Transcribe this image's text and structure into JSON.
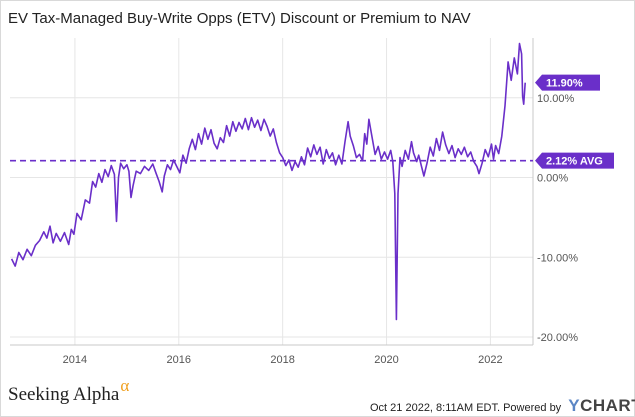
{
  "title": "EV Tax-Managed Buy-Write Opps (ETV) Discount or Premium to NAV",
  "colors": {
    "series": "#6a2fc9",
    "grid": "#e6e6e6",
    "axis": "#c8c8c8",
    "flag": "#6a2fc9"
  },
  "footer": {
    "brand_left": "Seeking Alpha",
    "brand_left_symbol": "α",
    "timestamp": "Oct 21 2022, 8:11AM EDT.",
    "powered_by": "Powered by",
    "brand_right_y": "Y",
    "brand_right_rest": "CHARTS"
  },
  "chart_data": {
    "type": "line",
    "title": "EV Tax-Managed Buy-Write Opps (ETV) Discount or Premium to NAV",
    "xlabel": "",
    "ylabel": "",
    "xlim": [
      2012.75,
      2022.82
    ],
    "ylim": [
      -21,
      17.5
    ],
    "x_ticks": [
      2014,
      2016,
      2018,
      2020,
      2022
    ],
    "x_tick_labels": [
      "2014",
      "2016",
      "2018",
      "2020",
      "2022"
    ],
    "y_ticks": [
      10,
      0,
      -10,
      -20
    ],
    "y_tick_labels": [
      "10.00%",
      "0.00%",
      "-10.00%",
      "-20.00%"
    ],
    "grid": true,
    "series": [
      {
        "name": "",
        "values": [
          [
            2012.78,
            -10.2
          ],
          [
            2012.85,
            -11.1
          ],
          [
            2012.92,
            -9.4
          ],
          [
            2013.0,
            -10.3
          ],
          [
            2013.08,
            -9.0
          ],
          [
            2013.16,
            -9.8
          ],
          [
            2013.24,
            -8.5
          ],
          [
            2013.32,
            -7.9
          ],
          [
            2013.4,
            -6.8
          ],
          [
            2013.46,
            -7.6
          ],
          [
            2013.52,
            -6.1
          ],
          [
            2013.58,
            -8.2
          ],
          [
            2013.64,
            -7.0
          ],
          [
            2013.72,
            -8.0
          ],
          [
            2013.8,
            -6.9
          ],
          [
            2013.88,
            -8.4
          ],
          [
            2013.93,
            -6.5
          ],
          [
            2013.98,
            -7.1
          ],
          [
            2014.04,
            -4.5
          ],
          [
            2014.12,
            -5.3
          ],
          [
            2014.2,
            -2.8
          ],
          [
            2014.28,
            -3.2
          ],
          [
            2014.34,
            -0.5
          ],
          [
            2014.4,
            -1.2
          ],
          [
            2014.46,
            0.5
          ],
          [
            2014.52,
            -0.6
          ],
          [
            2014.58,
            1.0
          ],
          [
            2014.64,
            0.1
          ],
          [
            2014.7,
            1.5
          ],
          [
            2014.76,
            0.4
          ],
          [
            2014.8,
            -5.5
          ],
          [
            2014.84,
            0.0
          ],
          [
            2014.88,
            1.8
          ],
          [
            2014.94,
            1.1
          ],
          [
            2015.0,
            1.6
          ],
          [
            2015.04,
            0.8
          ],
          [
            2015.08,
            -2.5
          ],
          [
            2015.12,
            -1.0
          ],
          [
            2015.18,
            0.8
          ],
          [
            2015.26,
            0.5
          ],
          [
            2015.34,
            1.4
          ],
          [
            2015.42,
            0.9
          ],
          [
            2015.5,
            1.7
          ],
          [
            2015.56,
            0.6
          ],
          [
            2015.62,
            -0.5
          ],
          [
            2015.68,
            -1.8
          ],
          [
            2015.72,
            0.2
          ],
          [
            2015.78,
            1.6
          ],
          [
            2015.84,
            1.0
          ],
          [
            2015.9,
            2.2
          ],
          [
            2015.96,
            1.4
          ],
          [
            2016.02,
            0.6
          ],
          [
            2016.08,
            2.8
          ],
          [
            2016.14,
            1.8
          ],
          [
            2016.2,
            3.6
          ],
          [
            2016.26,
            4.8
          ],
          [
            2016.32,
            3.5
          ],
          [
            2016.38,
            5.5
          ],
          [
            2016.44,
            4.2
          ],
          [
            2016.5,
            6.2
          ],
          [
            2016.56,
            4.8
          ],
          [
            2016.62,
            6.0
          ],
          [
            2016.68,
            4.3
          ],
          [
            2016.74,
            3.6
          ],
          [
            2016.8,
            5.0
          ],
          [
            2016.86,
            4.4
          ],
          [
            2016.92,
            6.5
          ],
          [
            2016.98,
            5.2
          ],
          [
            2017.04,
            7.0
          ],
          [
            2017.1,
            5.8
          ],
          [
            2017.16,
            6.9
          ],
          [
            2017.22,
            6.1
          ],
          [
            2017.28,
            7.4
          ],
          [
            2017.34,
            6.0
          ],
          [
            2017.4,
            7.5
          ],
          [
            2017.46,
            6.3
          ],
          [
            2017.52,
            7.2
          ],
          [
            2017.58,
            5.9
          ],
          [
            2017.64,
            7.3
          ],
          [
            2017.7,
            6.4
          ],
          [
            2017.76,
            5.2
          ],
          [
            2017.82,
            6.1
          ],
          [
            2017.88,
            4.4
          ],
          [
            2017.94,
            3.1
          ],
          [
            2018.0,
            2.5
          ],
          [
            2018.06,
            1.5
          ],
          [
            2018.12,
            2.2
          ],
          [
            2018.18,
            0.9
          ],
          [
            2018.24,
            2.0
          ],
          [
            2018.3,
            1.3
          ],
          [
            2018.36,
            2.6
          ],
          [
            2018.42,
            1.6
          ],
          [
            2018.48,
            3.7
          ],
          [
            2018.54,
            2.6
          ],
          [
            2018.6,
            4.1
          ],
          [
            2018.66,
            2.9
          ],
          [
            2018.72,
            3.8
          ],
          [
            2018.78,
            1.7
          ],
          [
            2018.84,
            3.5
          ],
          [
            2018.9,
            2.4
          ],
          [
            2018.96,
            3.1
          ],
          [
            2019.02,
            1.6
          ],
          [
            2019.08,
            2.8
          ],
          [
            2019.14,
            1.7
          ],
          [
            2019.2,
            4.5
          ],
          [
            2019.26,
            7.0
          ],
          [
            2019.3,
            5.2
          ],
          [
            2019.36,
            4.0
          ],
          [
            2019.42,
            2.5
          ],
          [
            2019.48,
            2.9
          ],
          [
            2019.54,
            2.1
          ],
          [
            2019.58,
            5.5
          ],
          [
            2019.62,
            4.2
          ],
          [
            2019.66,
            7.3
          ],
          [
            2019.72,
            5.1
          ],
          [
            2019.78,
            2.9
          ],
          [
            2019.84,
            3.9
          ],
          [
            2019.9,
            2.3
          ],
          [
            2019.96,
            3.2
          ],
          [
            2020.02,
            2.3
          ],
          [
            2020.08,
            3.4
          ],
          [
            2020.12,
            2.0
          ],
          [
            2020.16,
            -2.0
          ],
          [
            2020.19,
            -17.8
          ],
          [
            2020.22,
            -2.0
          ],
          [
            2020.26,
            2.5
          ],
          [
            2020.3,
            1.4
          ],
          [
            2020.36,
            3.4
          ],
          [
            2020.42,
            2.3
          ],
          [
            2020.48,
            4.5
          ],
          [
            2020.52,
            3.1
          ],
          [
            2020.58,
            2.0
          ],
          [
            2020.62,
            2.8
          ],
          [
            2020.68,
            1.2
          ],
          [
            2020.72,
            0.2
          ],
          [
            2020.78,
            1.8
          ],
          [
            2020.84,
            3.8
          ],
          [
            2020.9,
            2.7
          ],
          [
            2020.96,
            4.9
          ],
          [
            2021.02,
            3.4
          ],
          [
            2021.08,
            5.7
          ],
          [
            2021.14,
            4.1
          ],
          [
            2021.2,
            3.0
          ],
          [
            2021.26,
            4.0
          ],
          [
            2021.32,
            2.5
          ],
          [
            2021.38,
            3.6
          ],
          [
            2021.44,
            2.9
          ],
          [
            2021.5,
            3.8
          ],
          [
            2021.56,
            2.6
          ],
          [
            2021.62,
            3.2
          ],
          [
            2021.68,
            2.0
          ],
          [
            2021.74,
            1.4
          ],
          [
            2021.78,
            0.5
          ],
          [
            2021.84,
            1.8
          ],
          [
            2021.9,
            3.5
          ],
          [
            2021.96,
            2.6
          ],
          [
            2022.02,
            4.2
          ],
          [
            2022.06,
            2.3
          ],
          [
            2022.1,
            4.0
          ],
          [
            2022.16,
            3.0
          ],
          [
            2022.22,
            5.2
          ],
          [
            2022.28,
            9.0
          ],
          [
            2022.34,
            14.5
          ],
          [
            2022.4,
            12.2
          ],
          [
            2022.46,
            15.0
          ],
          [
            2022.52,
            13.0
          ],
          [
            2022.56,
            16.8
          ],
          [
            2022.6,
            15.5
          ],
          [
            2022.62,
            10.2
          ],
          [
            2022.64,
            9.2
          ],
          [
            2022.67,
            11.9
          ]
        ]
      }
    ],
    "reference_line": {
      "value": 2.12,
      "style": "dashed"
    },
    "flags": [
      {
        "label": "11.90%",
        "value": 11.9
      },
      {
        "label": "2.12% AVG",
        "value": 2.12
      }
    ]
  }
}
